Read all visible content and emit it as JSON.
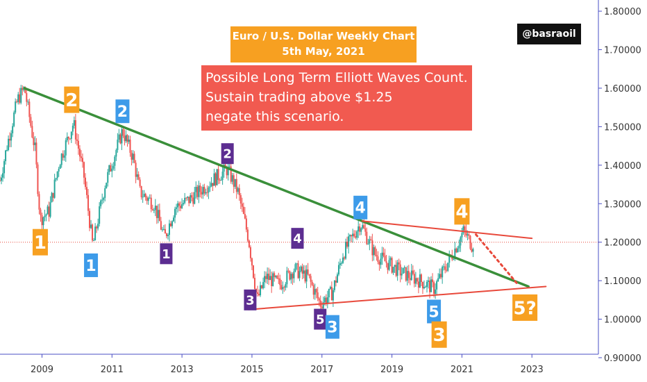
{
  "title_box": {
    "line1": "Euro / U.S. Dollar Weekly Chart",
    "line2": "5th May, 2021"
  },
  "note_box": {
    "line1": "Possible Long Term Elliott Waves Count.",
    "line2": "Sustain trading above $1.25",
    "line3": "negate this scenario."
  },
  "watermark": "@basraoil",
  "colors": {
    "orange": "#f7a021",
    "blue": "#3d9be9",
    "purple": "#5c2d91",
    "green_trendline": "#3a8f3a",
    "red_trendline": "#e8483a",
    "candle_up": "#26a69a",
    "candle_down": "#ef5350",
    "axis": "#4a4fc4",
    "note_bg": "#f15a50"
  },
  "chart_data": {
    "type": "candlestick",
    "y_axis": {
      "ticks": [
        "1.80000",
        "1.70000",
        "1.60000",
        "1.50000",
        "1.40000",
        "1.30000",
        "1.20000",
        "1.10000",
        "1.00000",
        "0.90000"
      ],
      "range": [
        0.9,
        1.82
      ]
    },
    "x_axis": {
      "ticks": [
        "2009",
        "2011",
        "2013",
        "2015",
        "2017",
        "2019",
        "2021",
        "2023"
      ],
      "range": [
        2007.8,
        2024.9
      ]
    },
    "price_path": [
      [
        2007.8,
        1.36
      ],
      [
        2008.0,
        1.45
      ],
      [
        2008.3,
        1.57
      ],
      [
        2008.5,
        1.6
      ],
      [
        2008.8,
        1.44
      ],
      [
        2008.95,
        1.26
      ],
      [
        2009.2,
        1.28
      ],
      [
        2009.5,
        1.41
      ],
      [
        2009.9,
        1.51
      ],
      [
        2010.2,
        1.37
      ],
      [
        2010.45,
        1.19
      ],
      [
        2010.8,
        1.35
      ],
      [
        2011.3,
        1.49
      ],
      [
        2011.6,
        1.42
      ],
      [
        2011.8,
        1.33
      ],
      [
        2012.2,
        1.3
      ],
      [
        2012.5,
        1.21
      ],
      [
        2012.8,
        1.29
      ],
      [
        2013.2,
        1.31
      ],
      [
        2013.6,
        1.34
      ],
      [
        2014.0,
        1.37
      ],
      [
        2014.3,
        1.39
      ],
      [
        2014.6,
        1.33
      ],
      [
        2014.9,
        1.21
      ],
      [
        2015.15,
        1.05
      ],
      [
        2015.4,
        1.11
      ],
      [
        2015.8,
        1.09
      ],
      [
        2016.2,
        1.13
      ],
      [
        2016.6,
        1.11
      ],
      [
        2016.95,
        1.04
      ],
      [
        2017.3,
        1.07
      ],
      [
        2017.6,
        1.17
      ],
      [
        2018.1,
        1.25
      ],
      [
        2018.5,
        1.17
      ],
      [
        2018.8,
        1.15
      ],
      [
        2019.3,
        1.12
      ],
      [
        2019.8,
        1.1
      ],
      [
        2020.2,
        1.08
      ],
      [
        2020.5,
        1.13
      ],
      [
        2020.9,
        1.2
      ],
      [
        2021.05,
        1.23
      ],
      [
        2021.3,
        1.19
      ],
      [
        2021.35,
        1.21
      ]
    ],
    "current_price_line": 1.2,
    "trendlines": [
      {
        "name": "green-trendline",
        "color": "#3a8f3a",
        "from": [
          2008.5,
          1.6
        ],
        "to": [
          2022.9,
          1.085
        ]
      },
      {
        "name": "upper-red-trendline",
        "color": "#e8483a",
        "from": [
          2018.15,
          1.255
        ],
        "to": [
          2023.0,
          1.21
        ]
      },
      {
        "name": "lower-red-trendline",
        "color": "#e8483a",
        "from": [
          2014.9,
          1.025
        ],
        "to": [
          2023.4,
          1.085
        ]
      },
      {
        "name": "projection-dotted",
        "color": "#e8483a",
        "dashed": true,
        "from": [
          2021.4,
          1.22
        ],
        "to": [
          2022.6,
          1.09
        ]
      }
    ],
    "wave_labels": [
      {
        "text": "1",
        "color": "orange",
        "x": 2008.95,
        "y": 1.2,
        "size": "big"
      },
      {
        "text": "2",
        "color": "orange",
        "x": 2009.85,
        "y": 1.57,
        "size": "big"
      },
      {
        "text": "1",
        "color": "blue",
        "x": 2010.4,
        "y": 1.14,
        "size": "med"
      },
      {
        "text": "2",
        "color": "blue",
        "x": 2011.3,
        "y": 1.54,
        "size": "med"
      },
      {
        "text": "1",
        "color": "purple",
        "x": 2012.55,
        "y": 1.17,
        "size": "small"
      },
      {
        "text": "2",
        "color": "purple",
        "x": 2014.3,
        "y": 1.43,
        "size": "small"
      },
      {
        "text": "3",
        "color": "purple",
        "x": 2014.95,
        "y": 1.05,
        "size": "small"
      },
      {
        "text": "4",
        "color": "purple",
        "x": 2016.3,
        "y": 1.21,
        "size": "small"
      },
      {
        "text": "5",
        "color": "purple",
        "x": 2016.95,
        "y": 1.0,
        "size": "small"
      },
      {
        "text": "3",
        "color": "blue",
        "x": 2017.3,
        "y": 0.98,
        "size": "med"
      },
      {
        "text": "4",
        "color": "blue",
        "x": 2018.1,
        "y": 1.29,
        "size": "med"
      },
      {
        "text": "5",
        "color": "blue",
        "x": 2020.2,
        "y": 1.02,
        "size": "med"
      },
      {
        "text": "3",
        "color": "orange",
        "x": 2020.35,
        "y": 0.96,
        "size": "big"
      },
      {
        "text": "4",
        "color": "orange",
        "x": 2021.0,
        "y": 1.28,
        "size": "big"
      },
      {
        "text": "5?",
        "color": "orange",
        "x": 2022.8,
        "y": 1.03,
        "size": "big"
      }
    ]
  }
}
